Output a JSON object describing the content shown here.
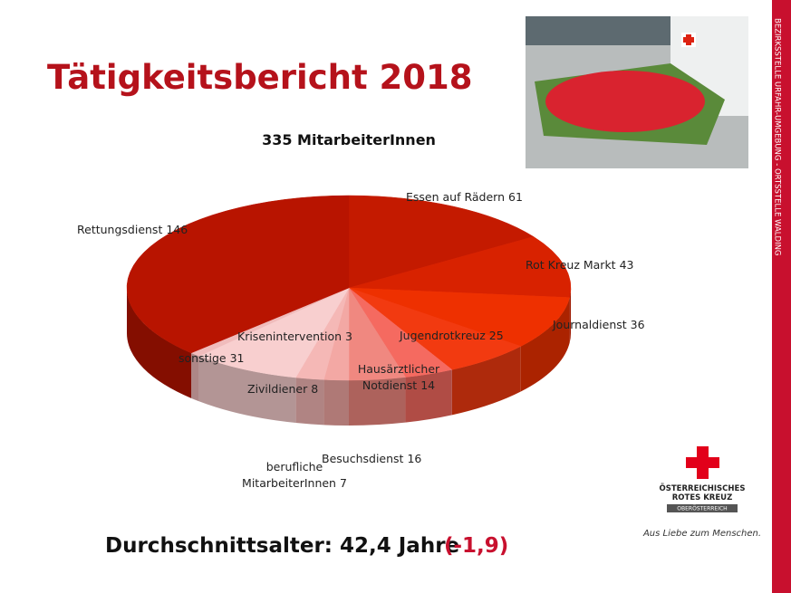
{
  "header": {
    "title": "Tätigkeitsbericht 2018"
  },
  "sidebar": {
    "text": "BEZIRKSSTELLE URFAHR-UMGEBUNG - ORTSSTELLE WALDING"
  },
  "chart_data": {
    "type": "pie",
    "title": "335 MitarbeiterInnen",
    "categories": [
      "Essen auf Rädern",
      "Rot Kreuz Markt",
      "Journaldienst",
      "Jugendrotkreuz",
      "Hausärztlicher Notdienst",
      "Besuchsdienst",
      "berufliche MitarbeiterInnen",
      "Zivildiener",
      "sonstige",
      "Krisenintervention",
      "Rettungsdienst"
    ],
    "values": [
      61,
      43,
      36,
      25,
      14,
      16,
      7,
      8,
      31,
      3,
      146
    ],
    "colors": [
      "#c41a00",
      "#d82200",
      "#ee3000",
      "#f23a10",
      "#f56a60",
      "#f08880",
      "#f3a8a4",
      "#f5b8b6",
      "#f8cfcf",
      "#f0bcbc",
      "#b81400"
    ]
  },
  "footer": {
    "average_age": "Durchschnittsalter: 42,4 Jahre",
    "change": "(-1,9)"
  },
  "logo": {
    "name_line1": "ÖSTERREICHISCHES",
    "name_line2": "ROTES KREUZ",
    "region": "OBERÖSTERREICH",
    "slogan": "Aus Liebe zum Menschen."
  }
}
